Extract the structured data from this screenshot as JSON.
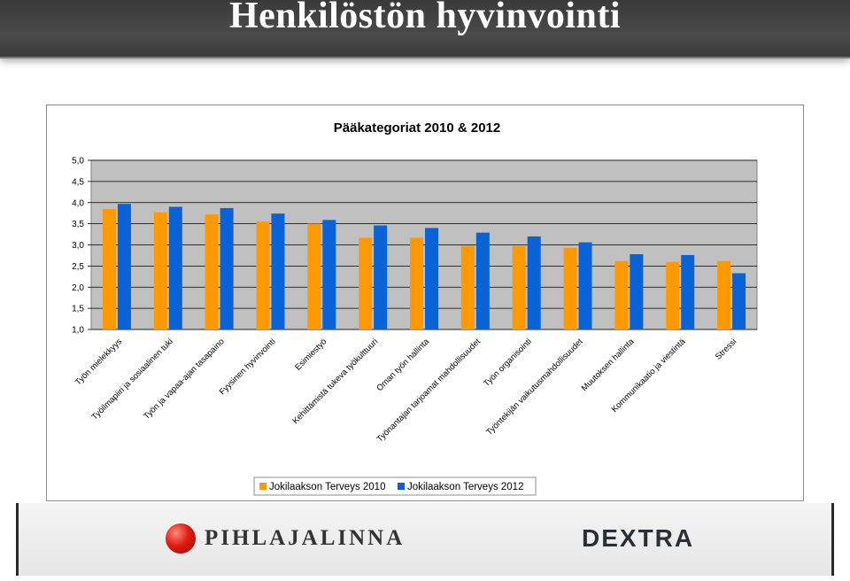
{
  "header": {
    "title": "Henkilöstön hyvinvointi"
  },
  "footer": {
    "logo_left": "PIHLAJALINNA",
    "logo_right": "DEXTRA"
  },
  "colors": {
    "series_2010": "#ff9900",
    "series_2012": "#0a63d6",
    "plot_bg": "#c0c0c0"
  },
  "chart_data": {
    "type": "bar",
    "title": "Pääkategoriat 2010 & 2012",
    "xlabel": "",
    "ylabel": "",
    "ylim": [
      1.0,
      5.0
    ],
    "yticks": [
      "1,0",
      "1,5",
      "2,0",
      "2,5",
      "3,0",
      "3,5",
      "4,0",
      "4,5",
      "5,0"
    ],
    "ytick_values": [
      1.0,
      1.5,
      2.0,
      2.5,
      3.0,
      3.5,
      4.0,
      4.5,
      5.0
    ],
    "grid": true,
    "legend_position": "bottom",
    "categories": [
      "Työn mielekkyys",
      "Työilmapiiri ja sosiaalinen tuki",
      "Työn ja vapaa-ajan tasapaino",
      "Fyysinen hyvinvointi",
      "Esimiestyö",
      "Kehittämistä tukeva työkulttuuri",
      "Oman työn hallinta",
      "Työnantajan tarjoamat mahdollisuudet",
      "Työn organisointi",
      "Työntekijän vaikutusmahdollisuudet",
      "Muutoksen hallinta",
      "Kommunikaatio ja viestintä",
      "Stressi"
    ],
    "series": [
      {
        "name": "Jokilaakson Terveys 2010",
        "color": "#ff9900",
        "values": [
          3.85,
          3.77,
          3.72,
          3.55,
          3.5,
          3.17,
          3.17,
          2.98,
          2.97,
          2.93,
          2.62,
          2.6,
          2.62
        ]
      },
      {
        "name": "Jokilaakson Terveys 2012",
        "color": "#0a63d6",
        "values": [
          3.97,
          3.9,
          3.87,
          3.74,
          3.59,
          3.46,
          3.4,
          3.29,
          3.2,
          3.06,
          2.78,
          2.76,
          2.33
        ]
      }
    ]
  }
}
